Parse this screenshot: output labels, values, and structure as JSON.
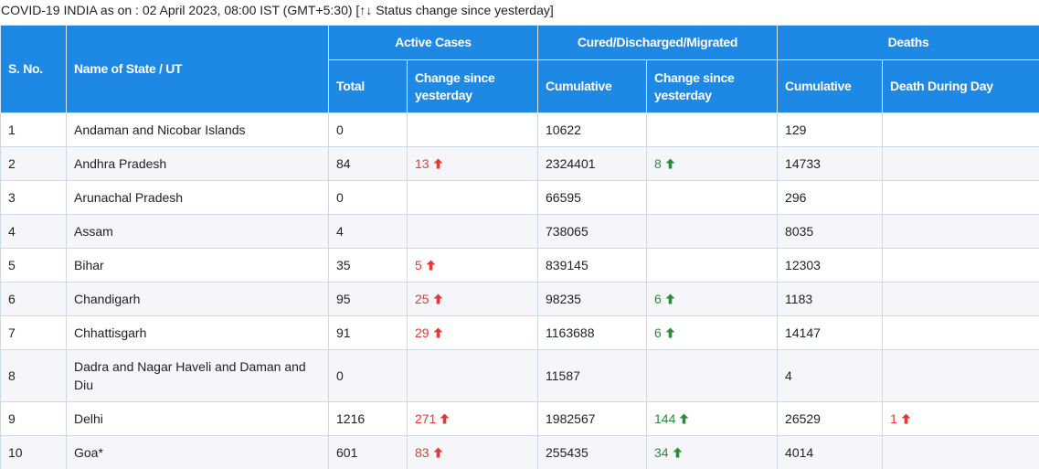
{
  "caption": "COVID-19 INDIA as on : 02 April 2023, 08:00 IST (GMT+5:30) [↑↓ Status change since yesterday]",
  "header": {
    "sno": "S. No.",
    "state": "Name of State / UT",
    "active_group": "Active Cases",
    "cured_group": "Cured/Discharged/Migrated",
    "deaths_group": "Deaths",
    "active_total": "Total",
    "active_change": "Change since yesterday",
    "cured_cumulative": "Cumulative",
    "cured_change": "Change since yesterday",
    "deaths_cumulative": "Cumulative",
    "deaths_day": "Death During Day"
  },
  "colors": {
    "header_bg": "#1e88e5",
    "increase_active": "#e53935",
    "increase_cured": "#2e8b3a"
  },
  "icons": {
    "up_arrow": "arrow-up-icon"
  },
  "rows": [
    {
      "sno": "1",
      "state": "Andaman and Nicobar Islands",
      "active": "0",
      "active_change": "",
      "cured": "10622",
      "cured_change": "",
      "deaths": "129",
      "deaths_day": ""
    },
    {
      "sno": "2",
      "state": "Andhra Pradesh",
      "active": "84",
      "active_change": "13",
      "cured": "2324401",
      "cured_change": "8",
      "deaths": "14733",
      "deaths_day": ""
    },
    {
      "sno": "3",
      "state": "Arunachal Pradesh",
      "active": "0",
      "active_change": "",
      "cured": "66595",
      "cured_change": "",
      "deaths": "296",
      "deaths_day": ""
    },
    {
      "sno": "4",
      "state": "Assam",
      "active": "4",
      "active_change": "",
      "cured": "738065",
      "cured_change": "",
      "deaths": "8035",
      "deaths_day": ""
    },
    {
      "sno": "5",
      "state": "Bihar",
      "active": "35",
      "active_change": "5",
      "cured": "839145",
      "cured_change": "",
      "deaths": "12303",
      "deaths_day": ""
    },
    {
      "sno": "6",
      "state": "Chandigarh",
      "active": "95",
      "active_change": "25",
      "cured": "98235",
      "cured_change": "6",
      "deaths": "1183",
      "deaths_day": ""
    },
    {
      "sno": "7",
      "state": "Chhattisgarh",
      "active": "91",
      "active_change": "29",
      "cured": "1163688",
      "cured_change": "6",
      "deaths": "14147",
      "deaths_day": ""
    },
    {
      "sno": "8",
      "state": "Dadra and Nagar Haveli and Daman and Diu",
      "active": "0",
      "active_change": "",
      "cured": "11587",
      "cured_change": "",
      "deaths": "4",
      "deaths_day": ""
    },
    {
      "sno": "9",
      "state": "Delhi",
      "active": "1216",
      "active_change": "271",
      "cured": "1982567",
      "cured_change": "144",
      "deaths": "26529",
      "deaths_day": "1"
    },
    {
      "sno": "10",
      "state": "Goa*",
      "active": "601",
      "active_change": "83",
      "cured": "255435",
      "cured_change": "34",
      "deaths": "4014",
      "deaths_day": ""
    }
  ]
}
